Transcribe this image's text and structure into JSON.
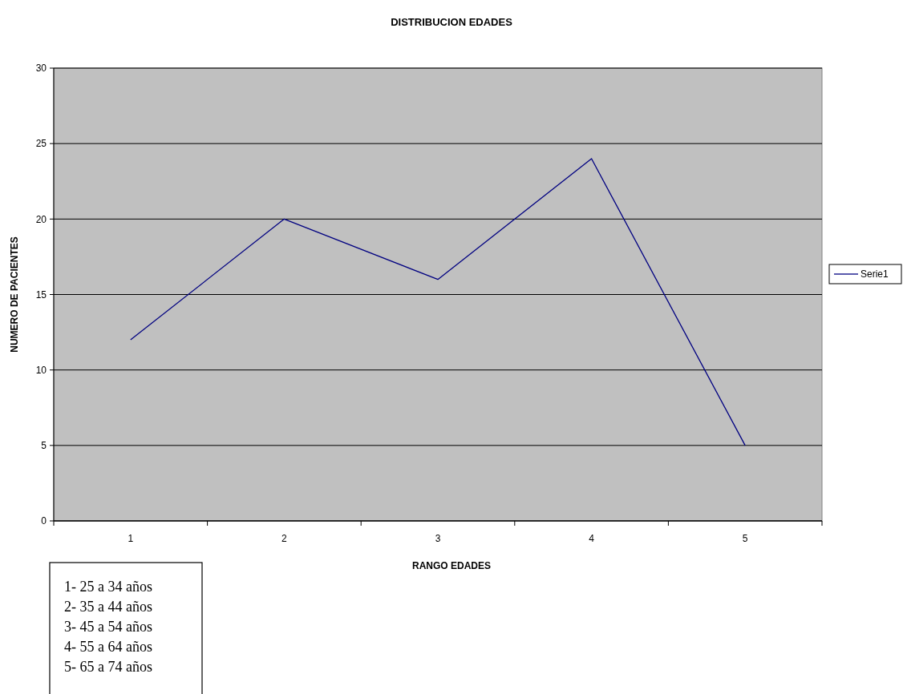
{
  "chart_data": {
    "type": "line",
    "title": "DISTRIBUCION EDADES",
    "xlabel": "RANGO EDADES",
    "ylabel": "NUMERO DE PACIENTES",
    "categories": [
      "1",
      "2",
      "3",
      "4",
      "5"
    ],
    "series": [
      {
        "name": "Serie1",
        "color": "#000080",
        "values": [
          12,
          20,
          16,
          24,
          5
        ]
      }
    ],
    "ylim": [
      0,
      30
    ],
    "yticks": [
      0,
      5,
      10,
      15,
      20,
      25,
      30
    ],
    "grid": "y",
    "legend": "right",
    "marker": "none",
    "annotations": [
      "1- 25 a 34 años",
      "2- 35 a 44 años",
      "3- 45 a 54 años",
      "4- 55 a 64 años",
      "5- 65 a 74 años"
    ]
  }
}
